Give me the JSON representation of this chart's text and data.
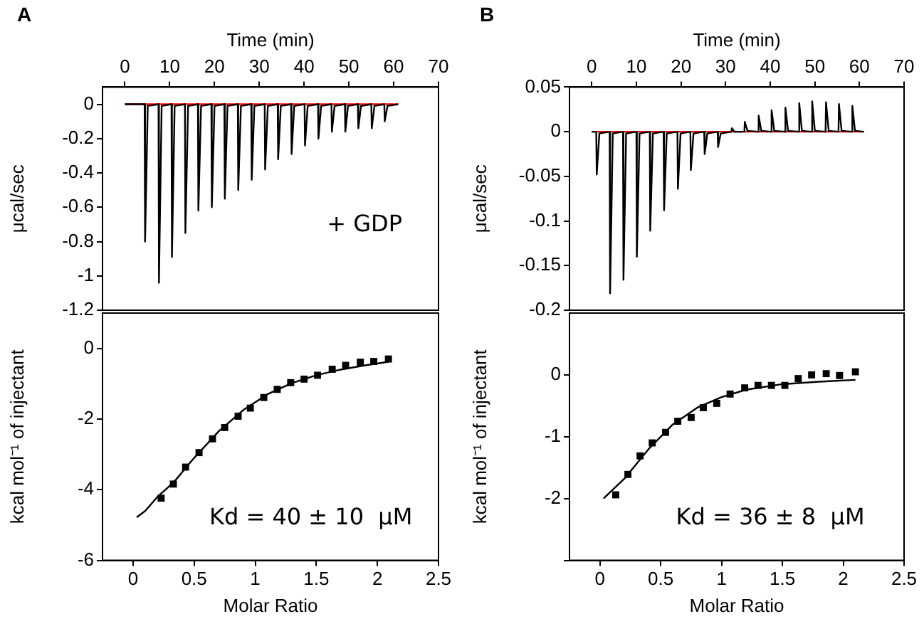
{
  "chart_data": [
    {
      "type": "line",
      "title": "A",
      "xlabel": "Time (min)",
      "ylabel": "μcal/sec",
      "xlim": [
        -5,
        70
      ],
      "xticks": [
        0,
        10,
        20,
        30,
        40,
        50,
        60,
        70
      ],
      "ylim": [
        -1.2,
        0.1
      ],
      "yticks": [
        0,
        -0.2,
        -0.4,
        -0.6,
        -0.8,
        -1,
        -1.2
      ],
      "annotations": [
        "+ GDP"
      ],
      "series": [
        {
          "color": "#000000",
          "x": [
            0,
            4.4,
            4.5,
            5.1,
            7.5,
            7.6,
            8.2,
            10.4,
            10.5,
            11.1,
            13.4,
            13.5,
            14.1,
            16.3,
            16.4,
            17.0,
            19.3,
            19.4,
            20.0,
            22.2,
            22.3,
            22.9,
            25.2,
            25.3,
            25.9,
            28.2,
            28.3,
            28.9,
            31.2,
            31.3,
            31.9,
            34.1,
            34.2,
            34.8,
            37.1,
            37.2,
            37.8,
            40.1,
            40.2,
            40.8,
            43.1,
            43.2,
            43.8,
            46.1,
            46.2,
            46.8,
            49.1,
            49.2,
            49.8,
            52.0,
            52.1,
            52.7,
            55.0,
            55.1,
            55.7,
            57.9,
            58.0,
            58.6,
            61
          ],
          "values": [
            0,
            0,
            -0.8,
            -0.01,
            0,
            -1.04,
            -0.01,
            0,
            -0.89,
            -0.01,
            0,
            -0.75,
            -0.01,
            0,
            -0.62,
            -0.01,
            0,
            -0.6,
            -0.01,
            0,
            -0.55,
            -0.01,
            0,
            -0.5,
            -0.01,
            0,
            -0.44,
            -0.01,
            0,
            -0.38,
            -0.01,
            0,
            -0.32,
            -0.01,
            0,
            -0.29,
            -0.01,
            0,
            -0.24,
            -0.01,
            0,
            -0.2,
            -0.01,
            0,
            -0.16,
            -0.01,
            0,
            -0.16,
            -0.01,
            0,
            -0.14,
            -0.01,
            0,
            -0.14,
            -0.01,
            0,
            -0.1,
            -0.01,
            0
          ]
        },
        {
          "color": "#ff0000",
          "x": [
            0,
            61
          ],
          "values": [
            0,
            0
          ]
        }
      ]
    },
    {
      "type": "scatter",
      "ylabel": "kcal mol⁻¹ of injectant",
      "xlabel": "Molar Ratio",
      "xlim": [
        -0.25,
        2.5
      ],
      "xticks": [
        0,
        0.5,
        1,
        1.5,
        2,
        2.5
      ],
      "ylim": [
        -6,
        1
      ],
      "yticks": [
        0,
        -2,
        -4,
        -6
      ],
      "annotations": [
        "Kd = 40 ± 10  μM"
      ],
      "series": [
        {
          "marker": "square",
          "color": "#000000",
          "x": [
            0.23,
            0.33,
            0.43,
            0.54,
            0.65,
            0.75,
            0.86,
            0.96,
            1.07,
            1.18,
            1.29,
            1.4,
            1.51,
            1.63,
            1.74,
            1.86,
            1.97,
            2.09
          ],
          "values": [
            -4.24,
            -3.84,
            -3.36,
            -2.95,
            -2.56,
            -2.24,
            -1.92,
            -1.69,
            -1.39,
            -1.16,
            -0.97,
            -0.87,
            -0.76,
            -0.59,
            -0.48,
            -0.39,
            -0.37,
            -0.3
          ]
        },
        {
          "type": "line",
          "marker": "none",
          "color": "#000000",
          "x": [
            0.03,
            0.1,
            0.2,
            0.33,
            0.5,
            0.7,
            0.9,
            1.1,
            1.3,
            1.5,
            1.7,
            1.9,
            2.09
          ],
          "values": [
            -4.78,
            -4.6,
            -4.2,
            -3.8,
            -3.1,
            -2.35,
            -1.75,
            -1.3,
            -0.98,
            -0.76,
            -0.6,
            -0.48,
            -0.38
          ]
        }
      ]
    },
    {
      "type": "line",
      "title": "B",
      "xlabel": "Time (min)",
      "ylabel": "μcal/sec",
      "xlim": [
        -5,
        70
      ],
      "xticks": [
        0,
        10,
        20,
        30,
        40,
        50,
        60,
        70
      ],
      "ylim": [
        -0.2,
        0.05
      ],
      "yticks": [
        0.05,
        0,
        -0.05,
        -0.1,
        -0.15,
        -0.2
      ],
      "series": [
        {
          "color": "#000000",
          "x": [
            0,
            1.0,
            1.1,
            1.7,
            4.0,
            4.1,
            4.7,
            7.0,
            7.1,
            7.7,
            10.0,
            10.1,
            10.7,
            13.0,
            13.1,
            13.7,
            16.1,
            16.2,
            16.8,
            19.2,
            19.3,
            19.9,
            22.1,
            22.2,
            22.8,
            25.2,
            25.3,
            25.9,
            28.2,
            28.3,
            28.9,
            31.3,
            31.4,
            32.0,
            34.2,
            34.3,
            34.9,
            37.3,
            37.4,
            38.0,
            40.2,
            40.3,
            40.9,
            43.3,
            43.4,
            44.0,
            46.4,
            46.5,
            47.1,
            49.3,
            49.4,
            50.0,
            52.4,
            52.5,
            53.1,
            55.3,
            55.4,
            56.0,
            58.3,
            58.4,
            59.0,
            61
          ],
          "values": [
            0,
            0,
            -0.048,
            -0.002,
            0,
            -0.181,
            -0.002,
            0,
            -0.166,
            -0.002,
            0,
            -0.14,
            -0.002,
            0,
            -0.111,
            -0.002,
            0,
            -0.088,
            -0.002,
            0,
            -0.064,
            -0.002,
            0,
            -0.043,
            -0.002,
            0,
            -0.025,
            -0.002,
            0,
            -0.017,
            -0.002,
            0,
            0.004,
            0,
            0,
            0.011,
            0.001,
            0,
            0.018,
            0.001,
            0,
            0.024,
            0.001,
            0,
            0.027,
            0.001,
            0,
            0.032,
            0.001,
            0,
            0.034,
            0.001,
            0,
            0.033,
            0.001,
            0,
            0.031,
            0.001,
            0,
            0.029,
            0.001,
            0
          ]
        },
        {
          "color": "#ff0000",
          "x": [
            0,
            61
          ],
          "values": [
            0,
            0
          ]
        }
      ]
    },
    {
      "type": "scatter",
      "ylabel": "kcal mol⁻¹ of injectant",
      "xlabel": "Molar Ratio",
      "xlim": [
        -0.25,
        2.5
      ],
      "xticks": [
        0,
        0.5,
        1,
        1.5,
        2,
        2.5
      ],
      "ylim": [
        -3,
        1
      ],
      "yticks": [
        0,
        -1,
        -2,
        {
          "value": -3,
          "label": null
        }
      ],
      "annotations": [
        "Kd = 36 ± 8  μM"
      ],
      "series": [
        {
          "marker": "square",
          "color": "#000000",
          "x": [
            0.13,
            0.23,
            0.33,
            0.43,
            0.54,
            0.64,
            0.75,
            0.85,
            0.96,
            1.07,
            1.19,
            1.3,
            1.41,
            1.52,
            1.63,
            1.74,
            1.86,
            1.97,
            2.1
          ],
          "values": [
            -1.94,
            -1.61,
            -1.31,
            -1.1,
            -0.93,
            -0.75,
            -0.69,
            -0.53,
            -0.46,
            -0.31,
            -0.21,
            -0.17,
            -0.17,
            -0.17,
            -0.06,
            0.0,
            0.02,
            -0.01,
            0.05
          ]
        },
        {
          "type": "line",
          "marker": "none",
          "color": "#000000",
          "x": [
            0.03,
            0.2,
            0.4,
            0.6,
            0.8,
            1.0,
            1.2,
            1.5,
            1.8,
            2.1
          ],
          "values": [
            -2.0,
            -1.68,
            -1.2,
            -0.8,
            -0.53,
            -0.36,
            -0.24,
            -0.15,
            -0.11,
            -0.08
          ]
        }
      ]
    }
  ]
}
